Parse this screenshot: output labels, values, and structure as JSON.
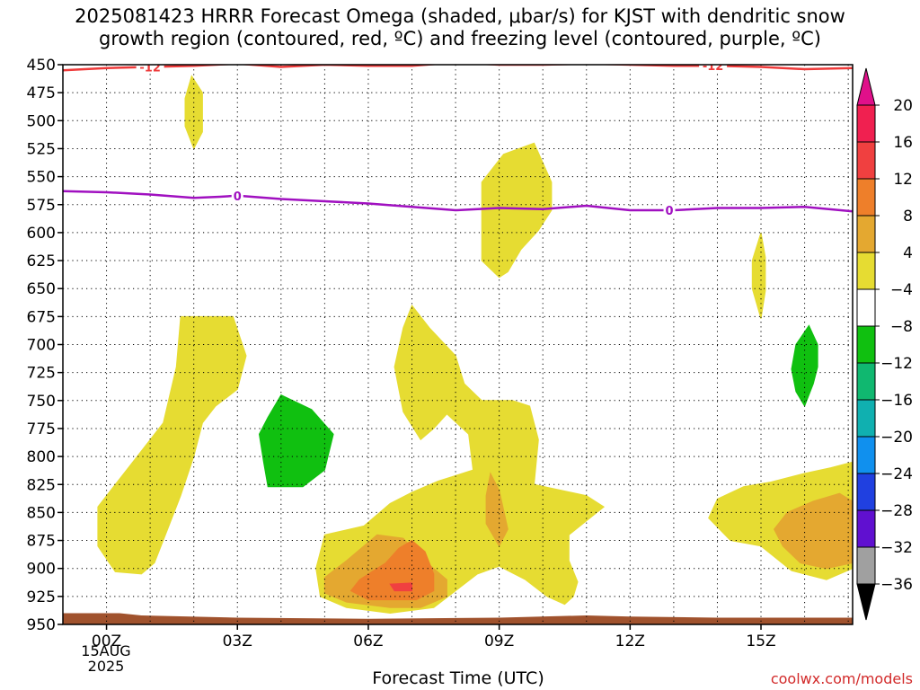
{
  "title": {
    "line1": "2025081423 HRRR Forecast Omega (shaded, μbar/s) for KJST with dendritic snow",
    "line2": "growth region (contoured, red, ºC) and freezing level (contoured, purple, ºC)"
  },
  "chart_data": {
    "type": "time-height contour",
    "xlabel": "Forecast Time (UTC)",
    "x_axis": {
      "range_hours": [
        -1,
        17.1
      ],
      "ticks": [
        {
          "hour": 0,
          "label": "00Z"
        },
        {
          "hour": 3,
          "label": "03Z"
        },
        {
          "hour": 6,
          "label": "06Z"
        },
        {
          "hour": 9,
          "label": "09Z"
        },
        {
          "hour": 12,
          "label": "12Z"
        },
        {
          "hour": 15,
          "label": "15Z"
        }
      ],
      "date_label": [
        "15AUG",
        "2025"
      ]
    },
    "y_axis": {
      "range": [
        450,
        950
      ],
      "ticks": [
        450,
        475,
        500,
        525,
        550,
        575,
        600,
        625,
        650,
        675,
        700,
        725,
        750,
        775,
        800,
        825,
        850,
        875,
        900,
        925,
        950
      ]
    },
    "grid": true,
    "colorbar": {
      "levels": [
        20,
        16,
        12,
        8,
        4,
        -4,
        -8,
        -12,
        -16,
        -20,
        -24,
        -28,
        -32,
        -36
      ],
      "colors": [
        "#f02050",
        "#f04040",
        "#ee7f2a",
        "#e4a830",
        "#e6dc32",
        "#ffffff",
        "#10c010",
        "#10b870",
        "#10b0b0",
        "#1090ee",
        "#2040e0",
        "#6010d0",
        "#a010c0",
        "#a0a0a0"
      ],
      "top_cap_color": "#e0108a",
      "bottom_cap_color": "#000000"
    },
    "contours": {
      "dgz_minus12": {
        "color": "#ee3a3a",
        "label": "-12",
        "points": [
          [
            -1.0,
            455
          ],
          [
            0.0,
            453
          ],
          [
            1.0,
            452
          ],
          [
            2.0,
            451
          ],
          [
            3.0,
            449
          ],
          [
            4.0,
            452
          ],
          [
            5.0,
            450
          ],
          [
            6.0,
            451
          ],
          [
            7.0,
            451
          ],
          [
            8.0,
            448
          ],
          [
            9.0,
            450
          ],
          [
            10.0,
            450
          ],
          [
            11.0,
            449
          ],
          [
            12.0,
            450
          ],
          [
            13.0,
            451
          ],
          [
            14.0,
            451
          ],
          [
            15.0,
            452
          ],
          [
            16.0,
            454
          ],
          [
            17.1,
            453
          ]
        ],
        "label_hours": [
          1.0,
          13.9
        ]
      },
      "freezing_0": {
        "color": "#a010c0",
        "label": "0",
        "points": [
          [
            -1.0,
            563
          ],
          [
            0.0,
            564
          ],
          [
            1.0,
            566
          ],
          [
            2.0,
            569
          ],
          [
            2.6,
            568
          ],
          [
            3.0,
            567
          ],
          [
            4.0,
            570
          ],
          [
            5.0,
            572
          ],
          [
            6.0,
            574
          ],
          [
            7.0,
            577
          ],
          [
            8.0,
            580
          ],
          [
            9.0,
            578
          ],
          [
            10.0,
            579
          ],
          [
            11.0,
            576
          ],
          [
            12.0,
            580
          ],
          [
            13.0,
            580
          ],
          [
            14.0,
            578
          ],
          [
            15.0,
            578
          ],
          [
            16.0,
            577
          ],
          [
            17.1,
            581
          ]
        ],
        "label_hours": [
          3.0,
          12.9
        ]
      }
    },
    "regions": [
      {
        "name": "4-8 upper narrow",
        "color": "#e6dc32",
        "points": [
          [
            1.95,
            460
          ],
          [
            2.2,
            475
          ],
          [
            2.2,
            510
          ],
          [
            2.0,
            525
          ],
          [
            1.8,
            505
          ],
          [
            1.8,
            480
          ]
        ]
      },
      {
        "name": "4-8 upper middle",
        "color": "#e6dc32",
        "points": [
          [
            9.8,
            520
          ],
          [
            10.2,
            555
          ],
          [
            10.2,
            580
          ],
          [
            9.9,
            598
          ],
          [
            9.5,
            615
          ],
          [
            9.2,
            635
          ],
          [
            9.0,
            640
          ],
          [
            8.6,
            625
          ],
          [
            8.6,
            555
          ],
          [
            9.1,
            530
          ]
        ]
      },
      {
        "name": "4-8 upper right",
        "color": "#e6dc32",
        "points": [
          [
            15.0,
            600
          ],
          [
            15.1,
            622
          ],
          [
            15.1,
            652
          ],
          [
            15.0,
            677
          ],
          [
            14.8,
            650
          ],
          [
            14.8,
            625
          ]
        ]
      },
      {
        "name": "4-8 lower left",
        "color": "#e6dc32",
        "points": [
          [
            1.7,
            675
          ],
          [
            2.9,
            675
          ],
          [
            3.2,
            710
          ],
          [
            3.0,
            740
          ],
          [
            2.5,
            755
          ],
          [
            2.2,
            770
          ],
          [
            2.0,
            800
          ],
          [
            1.7,
            835
          ],
          [
            1.4,
            865
          ],
          [
            1.1,
            895
          ],
          [
            0.8,
            905
          ],
          [
            0.2,
            903
          ],
          [
            -0.2,
            880
          ],
          [
            -0.2,
            845
          ],
          [
            0.3,
            820
          ],
          [
            0.7,
            800
          ],
          [
            1.3,
            770
          ],
          [
            1.6,
            720
          ]
        ]
      },
      {
        "name": "4-8 lower middle",
        "color": "#e6dc32",
        "points": [
          [
            7.0,
            665
          ],
          [
            7.4,
            685
          ],
          [
            8.0,
            710
          ],
          [
            8.2,
            735
          ],
          [
            8.6,
            750
          ],
          [
            9.3,
            750
          ],
          [
            9.7,
            755
          ],
          [
            9.9,
            785
          ],
          [
            9.8,
            825
          ],
          [
            10.4,
            830
          ],
          [
            11.0,
            835
          ],
          [
            11.4,
            845
          ],
          [
            10.6,
            870
          ],
          [
            10.6,
            893
          ],
          [
            10.8,
            912
          ],
          [
            10.7,
            925
          ],
          [
            10.5,
            932
          ],
          [
            10.1,
            925
          ],
          [
            9.6,
            910
          ],
          [
            9.0,
            898
          ],
          [
            8.5,
            905
          ],
          [
            8.0,
            920
          ],
          [
            7.5,
            935
          ],
          [
            6.5,
            940
          ],
          [
            5.5,
            935
          ],
          [
            4.9,
            925
          ],
          [
            4.8,
            900
          ],
          [
            5.0,
            870
          ],
          [
            5.9,
            862
          ],
          [
            6.5,
            842
          ],
          [
            7.0,
            832
          ],
          [
            7.6,
            822
          ],
          [
            8.0,
            817
          ],
          [
            8.4,
            812
          ],
          [
            8.3,
            780
          ],
          [
            7.8,
            762
          ],
          [
            7.5,
            775
          ],
          [
            7.2,
            785
          ],
          [
            6.8,
            760
          ],
          [
            6.6,
            720
          ],
          [
            6.8,
            685
          ]
        ]
      },
      {
        "name": "4-8 lower right",
        "color": "#e6dc32",
        "points": [
          [
            17.1,
            805
          ],
          [
            17.1,
            900
          ],
          [
            16.5,
            910
          ],
          [
            15.7,
            902
          ],
          [
            15.0,
            880
          ],
          [
            14.3,
            875
          ],
          [
            13.8,
            855
          ],
          [
            14.0,
            838
          ],
          [
            14.6,
            827
          ],
          [
            15.2,
            823
          ],
          [
            16.0,
            815
          ],
          [
            16.6,
            810
          ]
        ]
      },
      {
        "name": "8-12 lower middle",
        "color": "#e4a830",
        "points": [
          [
            6.2,
            870
          ],
          [
            6.8,
            873
          ],
          [
            7.2,
            890
          ],
          [
            7.8,
            910
          ],
          [
            7.8,
            925
          ],
          [
            7.2,
            935
          ],
          [
            6.5,
            935
          ],
          [
            5.5,
            930
          ],
          [
            5.0,
            922
          ],
          [
            5.0,
            908
          ],
          [
            5.5,
            893
          ]
        ]
      },
      {
        "name": "8-12 spike",
        "color": "#e4a830",
        "points": [
          [
            8.8,
            815
          ],
          [
            9.0,
            830
          ],
          [
            9.2,
            865
          ],
          [
            9.0,
            880
          ],
          [
            8.7,
            860
          ],
          [
            8.7,
            835
          ]
        ]
      },
      {
        "name": "8-12 lower right",
        "color": "#e4a830",
        "points": [
          [
            17.1,
            840
          ],
          [
            17.1,
            895
          ],
          [
            16.5,
            900
          ],
          [
            15.9,
            895
          ],
          [
            15.5,
            880
          ],
          [
            15.3,
            865
          ],
          [
            15.6,
            850
          ],
          [
            16.2,
            840
          ],
          [
            16.8,
            833
          ]
        ]
      },
      {
        "name": "12-16 core",
        "color": "#ee7f2a",
        "points": [
          [
            7.0,
            875
          ],
          [
            7.3,
            885
          ],
          [
            7.5,
            905
          ],
          [
            7.5,
            920
          ],
          [
            7.1,
            928
          ],
          [
            6.0,
            928
          ],
          [
            5.6,
            920
          ],
          [
            5.8,
            910
          ],
          [
            6.4,
            895
          ],
          [
            6.7,
            882
          ]
        ]
      },
      {
        "name": "16-20 core",
        "color": "#f04040",
        "points": [
          [
            6.5,
            914
          ],
          [
            7.0,
            913
          ],
          [
            7.0,
            920
          ],
          [
            6.6,
            920
          ]
        ]
      },
      {
        "name": "-4 to -8 middle",
        "color": "#10c010",
        "points": [
          [
            4.0,
            745
          ],
          [
            4.7,
            758
          ],
          [
            5.2,
            780
          ],
          [
            5.0,
            812
          ],
          [
            4.5,
            827
          ],
          [
            4.2,
            827
          ],
          [
            3.7,
            827
          ],
          [
            3.6,
            805
          ],
          [
            3.5,
            780
          ],
          [
            3.7,
            765
          ]
        ]
      },
      {
        "name": "-4 to -8 right",
        "color": "#10c010",
        "points": [
          [
            16.1,
            683
          ],
          [
            16.3,
            700
          ],
          [
            16.3,
            720
          ],
          [
            16.2,
            735
          ],
          [
            16.0,
            755
          ],
          [
            15.8,
            742
          ],
          [
            15.7,
            722
          ],
          [
            15.8,
            700
          ]
        ]
      }
    ],
    "terrain": {
      "color": "#a0522d",
      "points": [
        [
          -1.0,
          940
        ],
        [
          0.3,
          940
        ],
        [
          0.8,
          942
        ],
        [
          3.0,
          944
        ],
        [
          6.0,
          945
        ],
        [
          9.0,
          944
        ],
        [
          11.0,
          942
        ],
        [
          12.0,
          943
        ],
        [
          14.0,
          944
        ],
        [
          17.1,
          944
        ]
      ]
    }
  },
  "credit": "coolwx.com/models"
}
